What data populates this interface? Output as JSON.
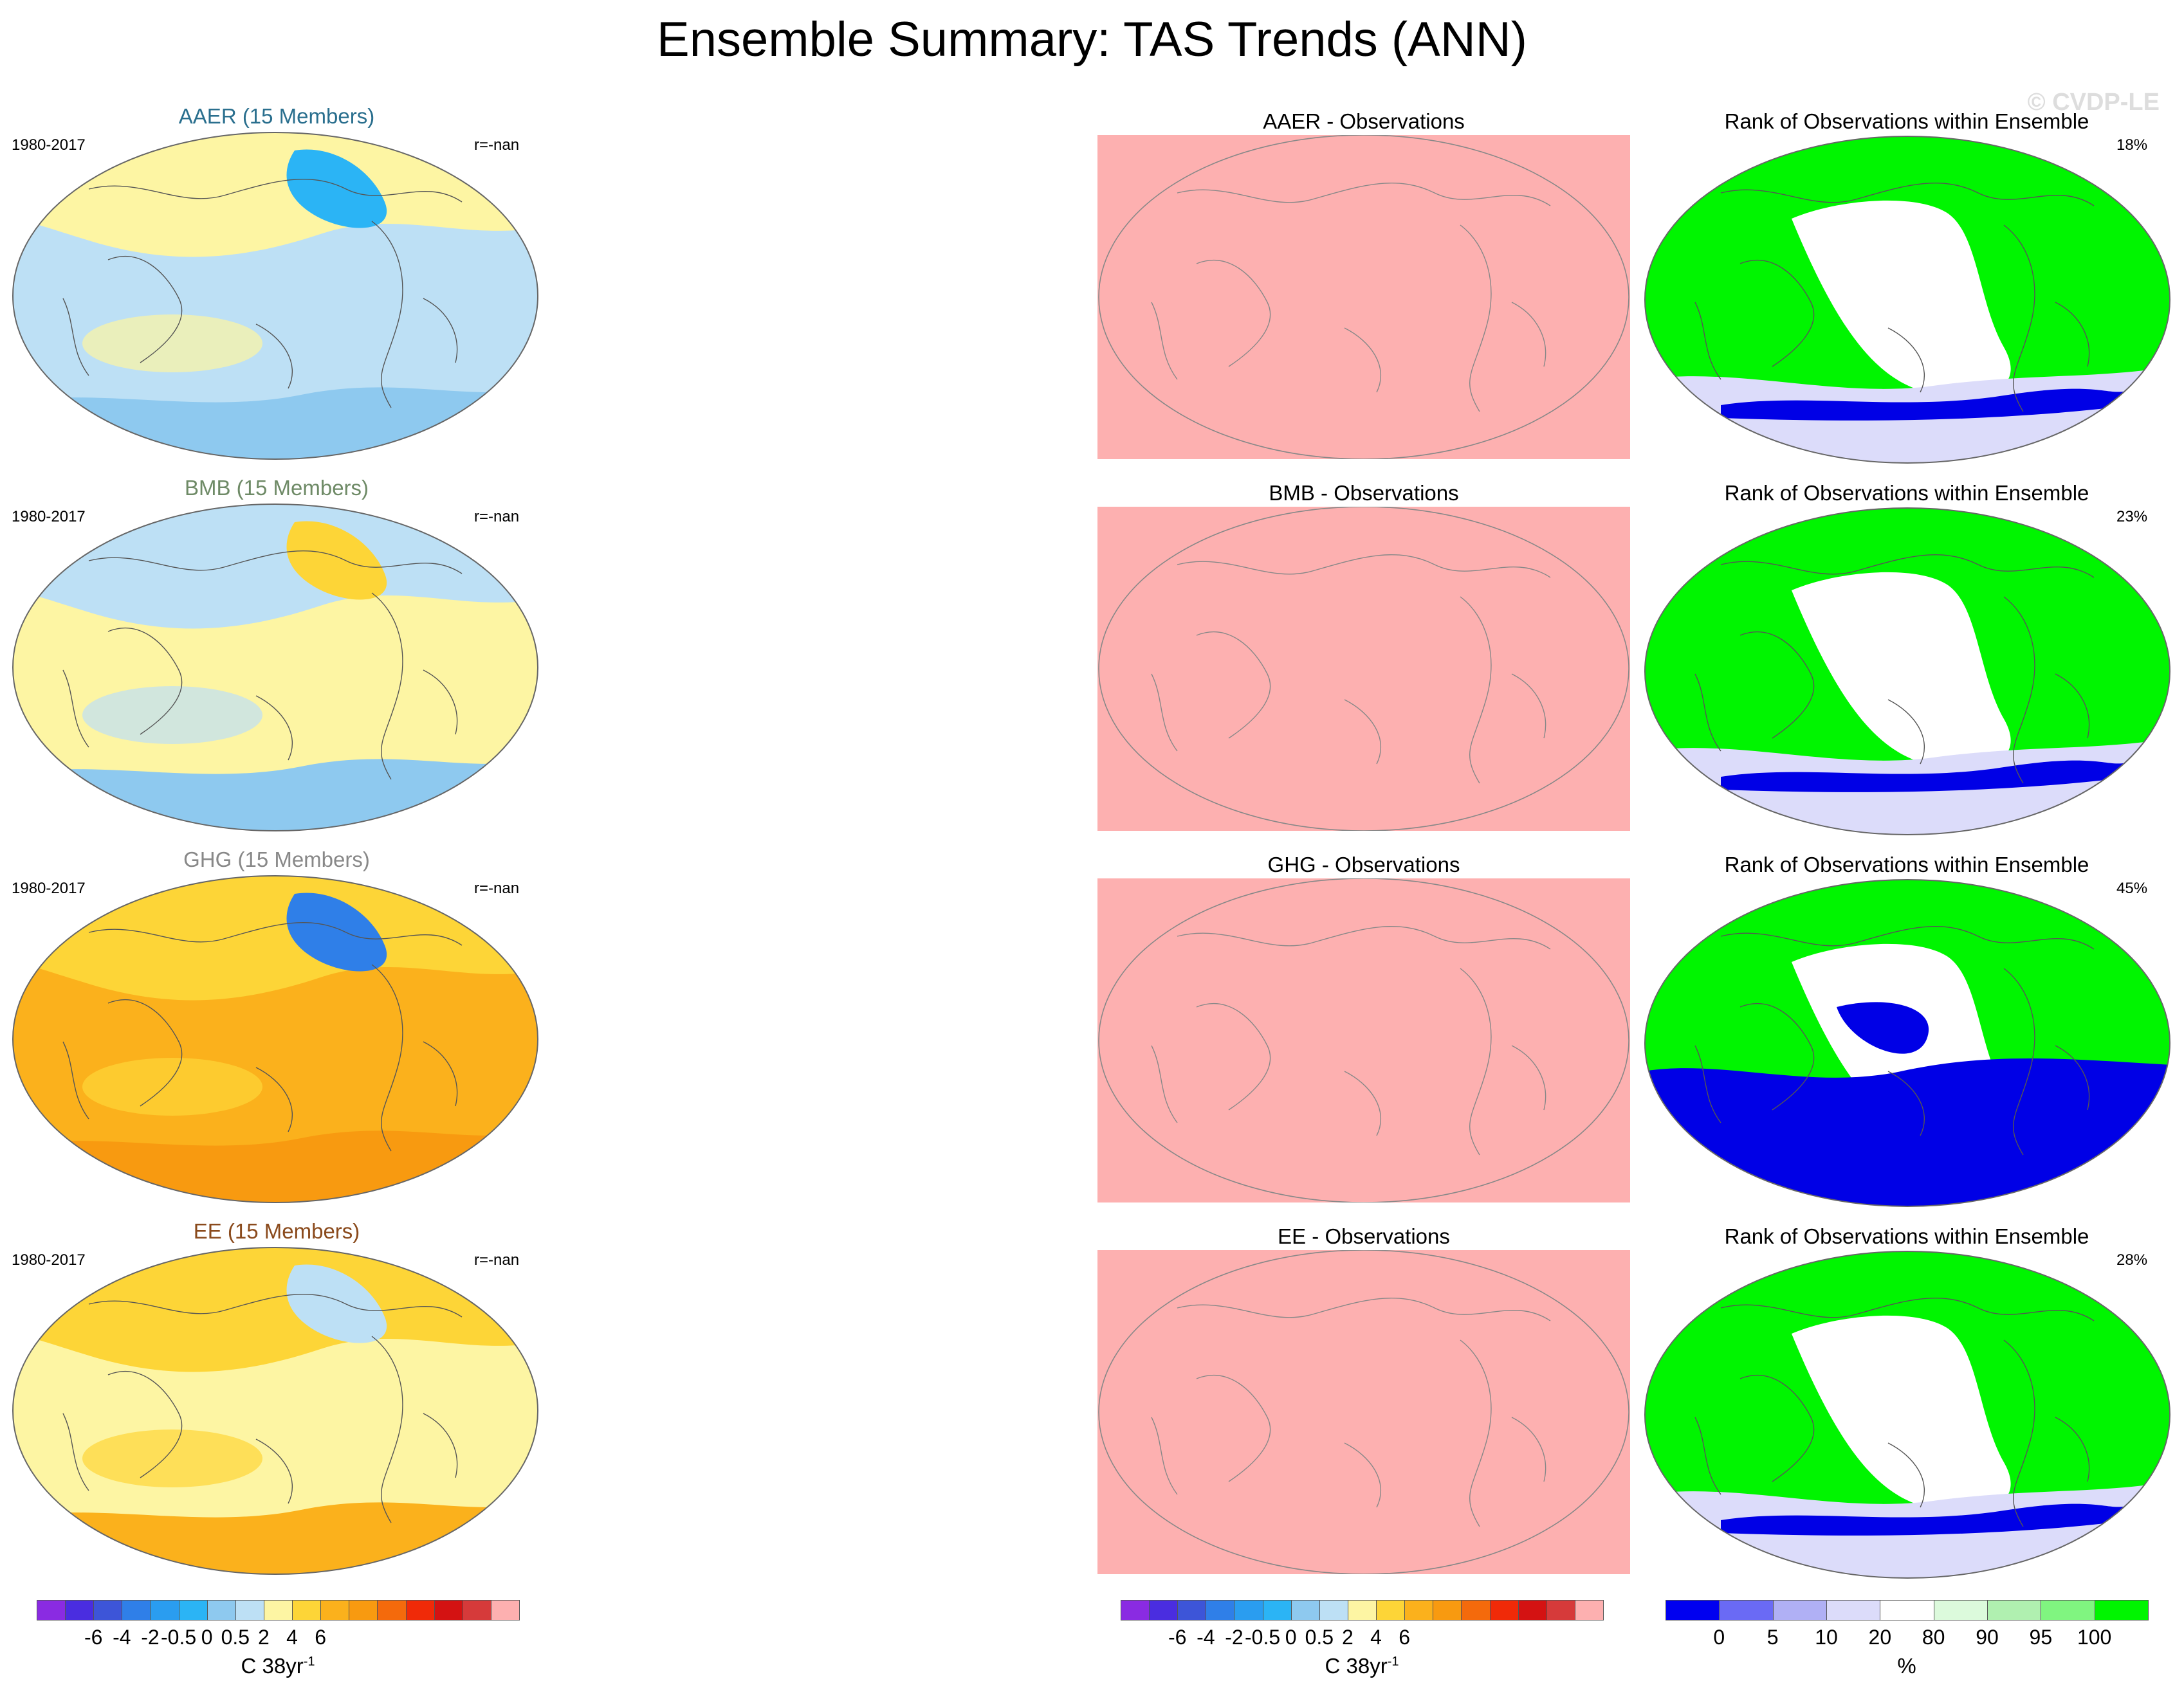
{
  "title": "Ensemble Summary: TAS Trends (ANN)",
  "watermark": "© CVDP-LE",
  "colors": {
    "aaer_title": "#2a6f8e",
    "bmb_title": "#6e8a66",
    "ghg_title": "#888888",
    "ee_title": "#8a4a1c",
    "obs_fill": "#fdb0b0",
    "rank_green": "#00f500",
    "rank_blue": "#0000e6",
    "neg_light": "#bde0f5",
    "neg_mid": "#8ec9ef",
    "pos_light": "#fdf5a3",
    "pos_mid": "#fdd537",
    "pos_orange": "#fbb11c"
  },
  "rows": [
    {
      "key": "aaer",
      "ens_title": "AAER (15 Members)",
      "period": "1980-2017",
      "corr": "r=-nan",
      "diff_title": "AAER - Observations",
      "rank_title": "Rank of Observations within Ensemble",
      "rank_pct": "18%"
    },
    {
      "key": "bmb",
      "ens_title": "BMB (15 Members)",
      "period": "1980-2017",
      "corr": "r=-nan",
      "diff_title": "BMB - Observations",
      "rank_title": "Rank of Observations within Ensemble",
      "rank_pct": "23%"
    },
    {
      "key": "ghg",
      "ens_title": "GHG (15 Members)",
      "period": "1980-2017",
      "corr": "r=-nan",
      "diff_title": "GHG - Observations",
      "rank_title": "Rank of Observations within Ensemble",
      "rank_pct": "45%"
    },
    {
      "key": "ee",
      "ens_title": "EE (15 Members)",
      "period": "1980-2017",
      "corr": "r=-nan",
      "diff_title": "EE - Observations",
      "rank_title": "Rank of Observations within Ensemble",
      "rank_pct": "28%"
    }
  ],
  "colorbar_trend": {
    "labels": [
      "-6",
      "-4",
      "-2",
      "-0.5",
      "0",
      "0.5",
      "2",
      "4",
      "6"
    ],
    "unit": "C 38yr",
    "unit_exp": "-1",
    "colors": [
      "#8a2be2",
      "#4a2de0",
      "#3d55d8",
      "#2f7fe8",
      "#2a9df0",
      "#2bb4f5",
      "#8ec9ef",
      "#bde0f5",
      "#fdf5a3",
      "#fdd537",
      "#fbb11c",
      "#f89a10",
      "#f46a0c",
      "#f02a08",
      "#d41212",
      "#d63a3a",
      "#fdb0b0"
    ]
  },
  "colorbar_rank": {
    "labels": [
      "0",
      "5",
      "10",
      "20",
      "80",
      "90",
      "95",
      "100"
    ],
    "unit": "%",
    "colors": [
      "#0000f0",
      "#6a6af5",
      "#b0b0f5",
      "#dcdcfa",
      "#ffffff",
      "#dcfadc",
      "#b0f0b0",
      "#80f580",
      "#00f500"
    ]
  },
  "chart_data": {
    "type": "heatmap",
    "title": "Ensemble Summary: TAS Trends (ANN)",
    "variable": "TAS trend",
    "season": "ANN",
    "period": "1980-2017",
    "panels": [
      {
        "ensemble": "AAER",
        "members": 15,
        "r": "-nan",
        "obs_rank_percent": 18
      },
      {
        "ensemble": "BMB",
        "members": 15,
        "r": "-nan",
        "obs_rank_percent": 23
      },
      {
        "ensemble": "GHG",
        "members": 15,
        "r": "-nan",
        "obs_rank_percent": 45
      },
      {
        "ensemble": "EE",
        "members": 15,
        "r": "-nan",
        "obs_rank_percent": 28
      }
    ],
    "trend_levels": [
      -6,
      -4,
      -2,
      -0.5,
      0,
      0.5,
      2,
      4,
      6
    ],
    "trend_units": "C 38yr-1",
    "rank_levels": [
      0,
      5,
      10,
      20,
      80,
      90,
      95,
      100
    ],
    "rank_units": "%"
  }
}
